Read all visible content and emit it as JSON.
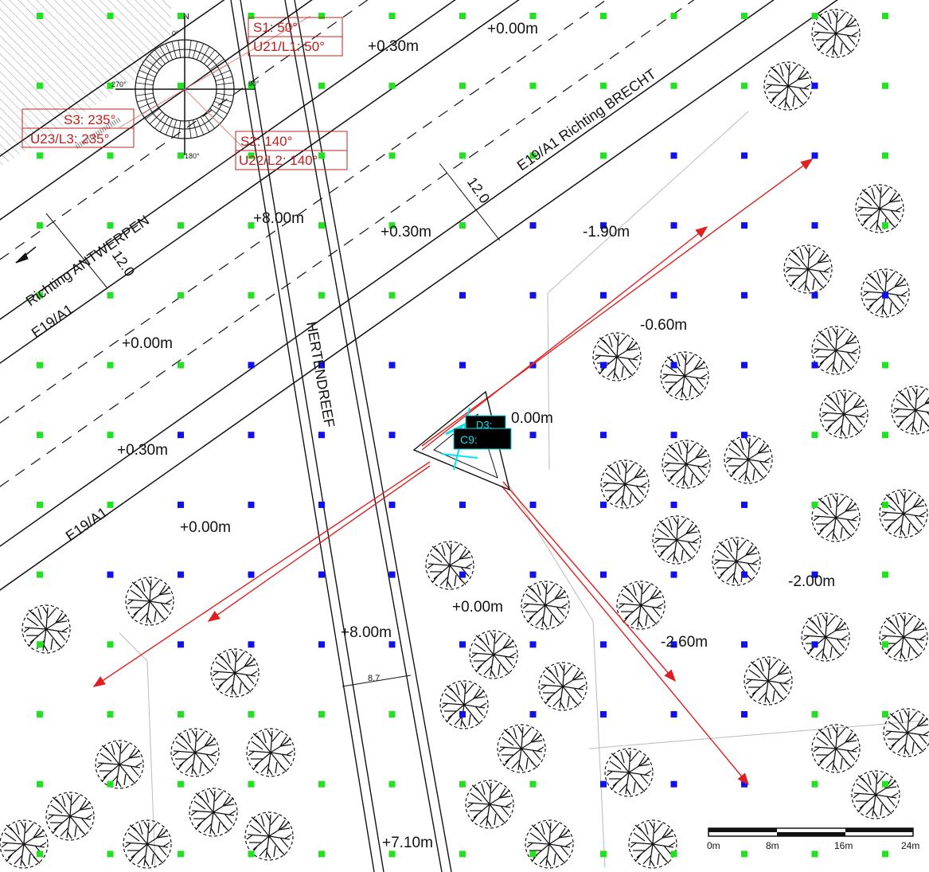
{
  "colors": {
    "grid_green": "#22e022",
    "grid_blue": "#1010ee",
    "arrow_red": "#e02020",
    "label_red": "#c0201f",
    "turbine_cyan": "#00e5ee"
  },
  "grid": {
    "cols": 13,
    "rows": 13,
    "blue_points": [
      [
        7,
        4
      ],
      [
        9,
        3
      ],
      [
        10,
        3
      ],
      [
        11,
        3
      ],
      [
        11,
        2
      ],
      [
        7,
        3
      ],
      [
        8,
        3
      ],
      [
        9,
        2
      ],
      [
        10,
        2
      ],
      [
        11,
        1
      ],
      [
        6,
        4
      ],
      [
        7,
        4
      ],
      [
        8,
        4
      ],
      [
        9,
        4
      ],
      [
        10,
        4
      ],
      [
        11,
        4
      ],
      [
        12,
        4
      ],
      [
        3,
        5
      ],
      [
        4,
        5
      ],
      [
        5,
        5
      ],
      [
        6,
        5
      ],
      [
        7,
        5
      ],
      [
        8,
        5
      ],
      [
        9,
        5
      ],
      [
        10,
        5
      ],
      [
        11,
        5
      ],
      [
        2,
        6
      ],
      [
        3,
        6
      ],
      [
        4,
        6
      ],
      [
        5,
        6
      ],
      [
        6,
        6
      ],
      [
        7,
        6
      ],
      [
        8,
        6
      ],
      [
        9,
        6
      ],
      [
        10,
        6
      ],
      [
        2,
        7
      ],
      [
        3,
        7
      ],
      [
        4,
        7
      ],
      [
        5,
        7
      ],
      [
        6,
        7
      ],
      [
        7,
        7
      ],
      [
        8,
        7
      ],
      [
        9,
        7
      ],
      [
        10,
        7
      ],
      [
        1,
        8
      ],
      [
        2,
        8
      ],
      [
        3,
        8
      ],
      [
        4,
        8
      ],
      [
        5,
        8
      ],
      [
        6,
        8
      ],
      [
        7,
        8
      ],
      [
        8,
        8
      ],
      [
        9,
        8
      ],
      [
        10,
        8
      ],
      [
        11,
        8
      ],
      [
        2,
        9
      ],
      [
        3,
        9
      ],
      [
        4,
        9
      ],
      [
        5,
        9
      ],
      [
        6,
        9
      ],
      [
        7,
        9
      ],
      [
        8,
        9
      ],
      [
        9,
        9
      ],
      [
        10,
        9
      ],
      [
        11,
        9
      ],
      [
        6,
        10
      ],
      [
        7,
        10
      ],
      [
        8,
        10
      ],
      [
        9,
        10
      ],
      [
        10,
        10
      ],
      [
        8,
        11
      ],
      [
        9,
        11
      ],
      [
        10,
        11
      ]
    ]
  },
  "elevations": [
    "+0.00m",
    "+0.30m",
    "+8.00m",
    "+0.30m",
    "-1.90m",
    "-0.60m",
    "+0.00m",
    "+0.30m",
    "+0.00m",
    "0.00m",
    "-2.00m",
    "+0.00m",
    "+8.00m",
    "-2.60m",
    "+7.10m"
  ],
  "roads": {
    "highway_north_label": "E19/A1   Richting BRECHT",
    "highway_south_label": "Richting ANTWERPEN",
    "highway_south_code": "E19/A1",
    "highway_south_code2": "E19/A1",
    "width_top": "12.0",
    "width_left": "12.0",
    "street_name": "HERTENDREEF",
    "street_width": "8.7"
  },
  "sun_labels": {
    "s1": "S1: 50°",
    "u21": "U21/L1: 50°",
    "s2": "S2: 140°",
    "u22": "U22/L2: 140°",
    "s3": "S3: 235°",
    "u23": "U23/L3: 235°"
  },
  "compass": {
    "north": "N",
    "deg0": "0°",
    "deg90": "90°",
    "deg180": "180°",
    "deg270": "270°"
  },
  "turbine": {
    "tag_top": "D3:",
    "tag_bottom": "C9:"
  },
  "scale_bar": {
    "labels": [
      "0m",
      "8m",
      "16m",
      "24m"
    ]
  }
}
